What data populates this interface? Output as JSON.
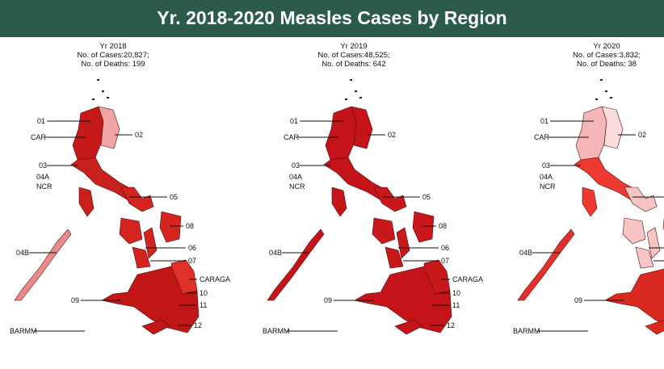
{
  "header": {
    "title": "Yr. 2018-2020 Measles Cases by Region"
  },
  "maps": [
    {
      "year": "Yr 2018",
      "cases": "No. of Cases:20,827;",
      "deaths": "No. of Deaths: 199"
    },
    {
      "year": "Yr 2019",
      "cases": "No. of Cases:48,525;",
      "deaths": "No. of Deaths: 642"
    },
    {
      "year": "Yr 2020",
      "cases": "No. of Cases:3,832;",
      "deaths": "No. of Deaths: 38"
    }
  ],
  "regions": [
    "01",
    "CAR",
    "02",
    "03",
    "04A",
    "NCR",
    "05",
    "08",
    "04B",
    "06",
    "07",
    "CARAGA",
    "09",
    "10",
    "11",
    "12",
    "BARMM"
  ]
}
